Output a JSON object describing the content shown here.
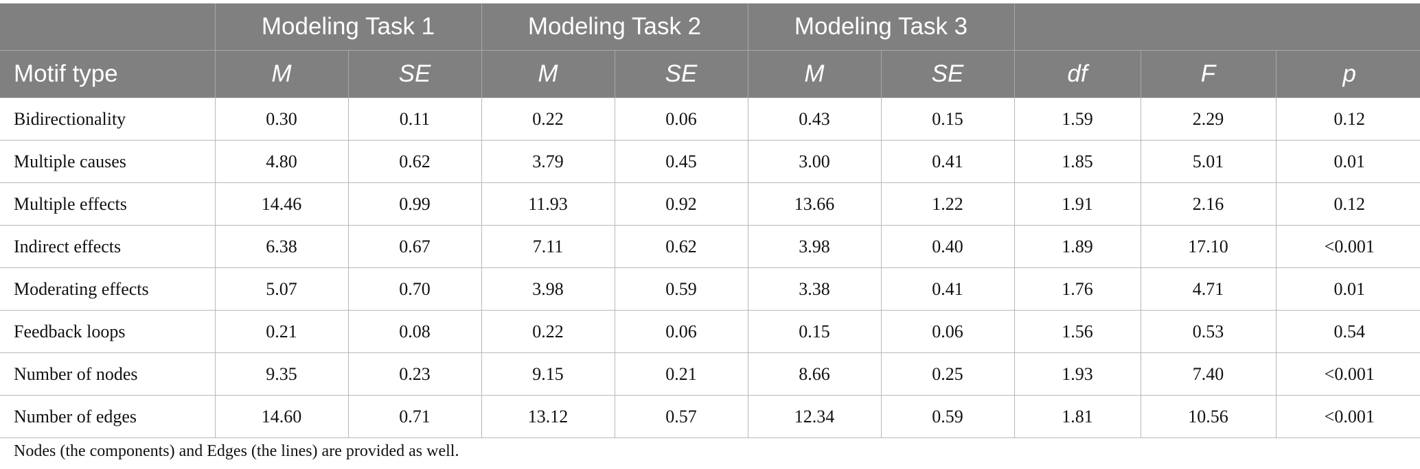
{
  "header": {
    "groups": [
      "Modeling Task 1",
      "Modeling Task 2",
      "Modeling Task 3"
    ],
    "first_col": "Motif type",
    "sub": [
      "M",
      "SE",
      "M",
      "SE",
      "M",
      "SE",
      "df",
      "F",
      "p"
    ]
  },
  "rows": [
    {
      "name": "Bidirectionality",
      "vals": [
        "0.30",
        "0.11",
        "0.22",
        "0.06",
        "0.43",
        "0.15",
        "1.59",
        "2.29",
        "0.12"
      ]
    },
    {
      "name": "Multiple causes",
      "vals": [
        "4.80",
        "0.62",
        "3.79",
        "0.45",
        "3.00",
        "0.41",
        "1.85",
        "5.01",
        "0.01"
      ]
    },
    {
      "name": "Multiple effects",
      "vals": [
        "14.46",
        "0.99",
        "11.93",
        "0.92",
        "13.66",
        "1.22",
        "1.91",
        "2.16",
        "0.12"
      ]
    },
    {
      "name": "Indirect effects",
      "vals": [
        "6.38",
        "0.67",
        "7.11",
        "0.62",
        "3.98",
        "0.40",
        "1.89",
        "17.10",
        "<0.001"
      ]
    },
    {
      "name": "Moderating effects",
      "vals": [
        "5.07",
        "0.70",
        "3.98",
        "0.59",
        "3.38",
        "0.41",
        "1.76",
        "4.71",
        "0.01"
      ]
    },
    {
      "name": "Feedback loops",
      "vals": [
        "0.21",
        "0.08",
        "0.22",
        "0.06",
        "0.15",
        "0.06",
        "1.56",
        "0.53",
        "0.54"
      ]
    },
    {
      "name": "Number of nodes",
      "vals": [
        "9.35",
        "0.23",
        "9.15",
        "0.21",
        "8.66",
        "0.25",
        "1.93",
        "7.40",
        "<0.001"
      ]
    },
    {
      "name": "Number of edges",
      "vals": [
        "14.60",
        "0.71",
        "13.12",
        "0.57",
        "12.34",
        "0.59",
        "1.81",
        "10.56",
        "<0.001"
      ]
    }
  ],
  "note": "Nodes (the components) and Edges (the lines) are provided as well.",
  "colors": {
    "header_bg": "#808080",
    "header_text": "#ffffff",
    "grid": "#b8b8b8"
  }
}
